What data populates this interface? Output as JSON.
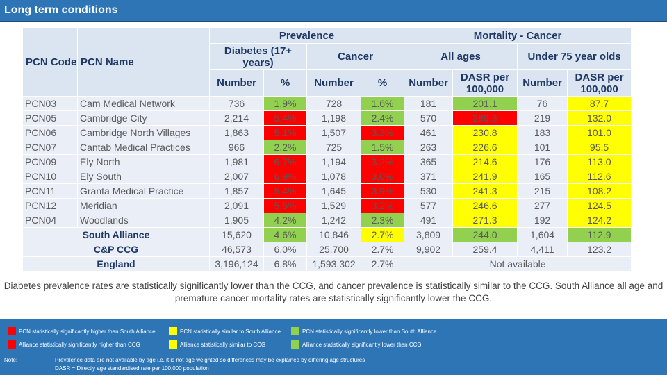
{
  "title": "Long term conditions",
  "headers": {
    "prevalence": "Prevalence",
    "mortality": "Mortality - Cancer",
    "pcn_code": "PCN Code",
    "pcn_name": "PCN Name",
    "diabetes": "Diabetes (17+ years)",
    "cancer": "Cancer",
    "all_ages": "All ages",
    "under75": "Under 75 year olds",
    "number": "Number",
    "pct": "%",
    "dasr": "DASR per 100,000"
  },
  "colors": {
    "header_bg": "#dbe5f1",
    "row_bg": "#e9eef7",
    "red": "#ff0000",
    "green": "#92d050",
    "yellow": "#ffff00",
    "footer": "#2e75b6"
  },
  "rows": [
    {
      "code": "PCN03",
      "name": "Cam Medical Network",
      "d_num": "736",
      "d_pct": "1.9%",
      "d_c": "g",
      "c_num": "728",
      "c_pct": "1.6%",
      "c_c": "g",
      "a_num": "181",
      "a_dasr": "201.1",
      "a_c": "g",
      "u_num": "76",
      "u_dasr": "87.7",
      "u_c": "y"
    },
    {
      "code": "PCN05",
      "name": "Cambridge City",
      "d_num": "2,214",
      "d_pct": "5.4%",
      "d_c": "r",
      "c_num": "1,198",
      "c_pct": "2.4%",
      "c_c": "g",
      "a_num": "570",
      "a_dasr": "289.3",
      "a_c": "r",
      "u_num": "219",
      "u_dasr": "132.0",
      "u_c": "y"
    },
    {
      "code": "PCN06",
      "name": "Cambridge North Villages",
      "d_num": "1,863",
      "d_pct": "5.1%",
      "d_c": "r",
      "c_num": "1,507",
      "c_pct": "3.3%",
      "c_c": "r",
      "a_num": "461",
      "a_dasr": "230.8",
      "a_c": "y",
      "u_num": "183",
      "u_dasr": "101.0",
      "u_c": "y"
    },
    {
      "code": "PCN07",
      "name": "Cantab Medical Practices",
      "d_num": "966",
      "d_pct": "2.2%",
      "d_c": "g",
      "c_num": "725",
      "c_pct": "1.5%",
      "c_c": "g",
      "a_num": "263",
      "a_dasr": "226.6",
      "a_c": "y",
      "u_num": "101",
      "u_dasr": "95.5",
      "u_c": "y"
    },
    {
      "code": "PCN09",
      "name": "Ely North",
      "d_num": "1,981",
      "d_pct": "6.7%",
      "d_c": "r",
      "c_num": "1,194",
      "c_pct": "3.2%",
      "c_c": "r",
      "a_num": "365",
      "a_dasr": "214.6",
      "a_c": "y",
      "u_num": "176",
      "u_dasr": "113.0",
      "u_c": "y"
    },
    {
      "code": "PCN10",
      "name": "Ely South",
      "d_num": "2,007",
      "d_pct": "6.9%",
      "d_c": "r",
      "c_num": "1,078",
      "c_pct": "3.0%",
      "c_c": "r",
      "a_num": "371",
      "a_dasr": "241.9",
      "a_c": "y",
      "u_num": "165",
      "u_dasr": "112.6",
      "u_c": "y"
    },
    {
      "code": "PCN11",
      "name": "Granta Medical Practice",
      "d_num": "1,857",
      "d_pct": "5.4%",
      "d_c": "r",
      "c_num": "1,645",
      "c_pct": "3.9%",
      "c_c": "r",
      "a_num": "530",
      "a_dasr": "241.3",
      "a_c": "y",
      "u_num": "215",
      "u_dasr": "108.2",
      "u_c": "y"
    },
    {
      "code": "PCN12",
      "name": "Meridian",
      "d_num": "2,091",
      "d_pct": "5.5%",
      "d_c": "r",
      "c_num": "1,529",
      "c_pct": "3.2%",
      "c_c": "r",
      "a_num": "577",
      "a_dasr": "246.6",
      "a_c": "y",
      "u_num": "277",
      "u_dasr": "124.5",
      "u_c": "y"
    },
    {
      "code": "PCN04",
      "name": "Woodlands",
      "d_num": "1,905",
      "d_pct": "4.2%",
      "d_c": "g",
      "c_num": "1,242",
      "c_pct": "2.3%",
      "c_c": "g",
      "a_num": "491",
      "a_dasr": "271.3",
      "a_c": "y",
      "u_num": "192",
      "u_dasr": "124.2",
      "u_c": "y"
    }
  ],
  "summary_rows": [
    {
      "name": "South Alliance",
      "d_num": "15,620",
      "d_pct": "4.6%",
      "d_c": "g",
      "c_num": "10,846",
      "c_pct": "2.7%",
      "c_c": "y",
      "a_num": "3,809",
      "a_dasr": "244.0",
      "a_c": "g",
      "u_num": "1,604",
      "u_dasr": "112.9",
      "u_c": "g"
    },
    {
      "name": "C&P CCG",
      "d_num": "46,573",
      "d_pct": "6.0%",
      "d_c": "n",
      "c_num": "25,700",
      "c_pct": "2.7%",
      "c_c": "n",
      "a_num": "9,902",
      "a_dasr": "259.4",
      "a_c": "n",
      "u_num": "4,411",
      "u_dasr": "123.2",
      "u_c": "n"
    }
  ],
  "england": {
    "name": "England",
    "d_num": "3,196,124",
    "d_pct": "6.8%",
    "c_num": "1,593,302",
    "c_pct": "2.7%",
    "mortality": "Not available"
  },
  "summary_text": "Diabetes prevalence rates are statistically significantly lower than the CCG, and cancer prevalence is statistically similar to the CCG. South Alliance all age and premature cancer mortality rates are statistically significantly lower the CCG.",
  "legend": {
    "pcn_higher": "PCN statistically significantly higher than South Alliance",
    "pcn_similar": "PCN statistically similar to South Alliance",
    "pcn_lower": "PCN statistically significantly lower than South Alliance",
    "sa_higher": "Alliance statistically significantly higher than CCG",
    "sa_similar": "Alliance statistically similar to CCG",
    "sa_lower": "Alliance statistically significantly lower than CCG"
  },
  "note_label": "Note:",
  "note_line1": "Prevalence data are not available by age i.e. it is not age weighted so differences may be explained by differing age structures",
  "note_line2": "DASR = Directly age standardised rate per 100,000 population"
}
